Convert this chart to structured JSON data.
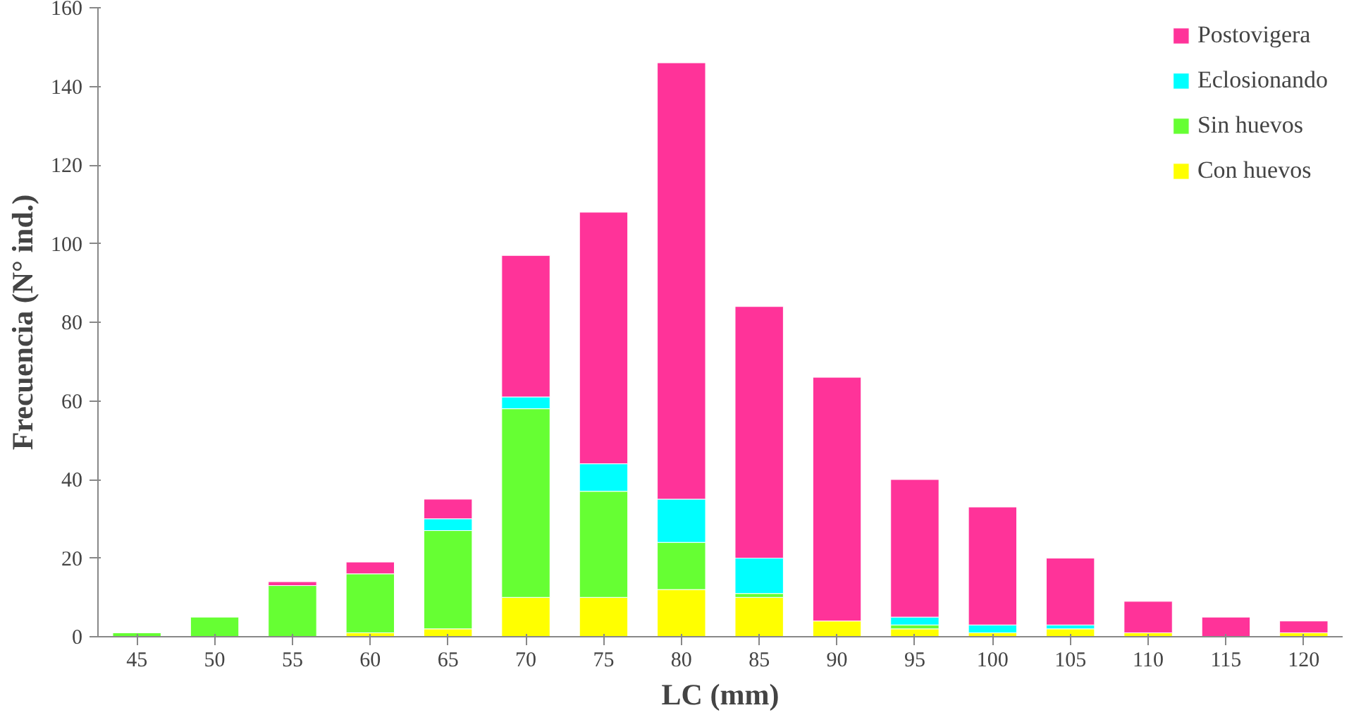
{
  "chart_data": {
    "type": "bar",
    "stacked": true,
    "xlabel": "LC (mm)",
    "ylabel": "Frecuencia (N° ind.)",
    "categories": [
      "45",
      "50",
      "55",
      "60",
      "65",
      "70",
      "75",
      "80",
      "85",
      "90",
      "95",
      "100",
      "105",
      "110",
      "115",
      "120"
    ],
    "ylim": [
      0,
      160
    ],
    "yticks": [
      0,
      20,
      40,
      60,
      80,
      100,
      120,
      140,
      160
    ],
    "grid": false,
    "legend": "top right",
    "series": [
      {
        "name": "Con huevos",
        "color": "#ffff00",
        "values": [
          0,
          0,
          0,
          1,
          2,
          10,
          10,
          12,
          10,
          4,
          2,
          1,
          2,
          1,
          0,
          1
        ]
      },
      {
        "name": "Sin huevos",
        "color": "#66ff33",
        "values": [
          1,
          5,
          13,
          15,
          25,
          48,
          27,
          12,
          1,
          0,
          1,
          0,
          0,
          0,
          0,
          0
        ]
      },
      {
        "name": "Eclosionando",
        "color": "#00ffff",
        "values": [
          0,
          0,
          0,
          0,
          3,
          3,
          7,
          11,
          9,
          0,
          2,
          2,
          1,
          0,
          0,
          0
        ]
      },
      {
        "name": "Postovigera",
        "color": "#ff3399",
        "values": [
          0,
          0,
          1,
          3,
          5,
          36,
          64,
          111,
          64,
          62,
          35,
          30,
          17,
          8,
          5,
          3
        ]
      }
    ]
  }
}
